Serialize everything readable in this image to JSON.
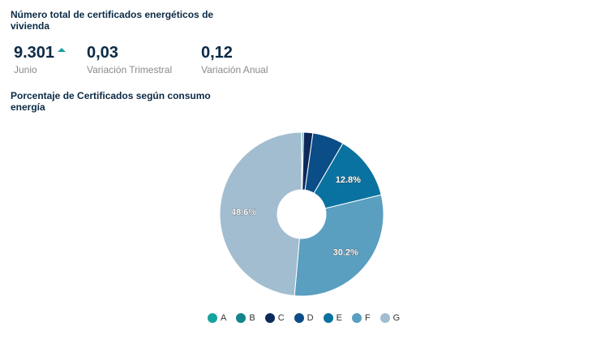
{
  "header": {
    "title": "Número total de certificados energéticos de vivienda"
  },
  "kpis": [
    {
      "value": "9.301",
      "label": "Junio",
      "trend_icon": "arrow-up-icon",
      "trend_color": "#16a39f"
    },
    {
      "value": "0,03",
      "label": "Variación Trimestral"
    },
    {
      "value": "0,12",
      "label": "Variación Anual"
    }
  ],
  "chart_section": {
    "title": "Porcentaje de Certificados según consumo energía"
  },
  "chart_data": {
    "type": "pie",
    "donut": true,
    "categories": [
      "A",
      "B",
      "C",
      "D",
      "E",
      "F",
      "G"
    ],
    "values": [
      0.1,
      0.3,
      1.8,
      6.2,
      12.8,
      30.2,
      48.6
    ],
    "data_labels": [
      "",
      "",
      "",
      "",
      "12.8%",
      "30.2%",
      "48.6%"
    ],
    "colors": [
      "#16a39f",
      "#138489",
      "#0b2a5b",
      "#0b4d86",
      "#0a72a0",
      "#5a9ec0",
      "#a2bdd0"
    ],
    "legend_position": "bottom"
  }
}
